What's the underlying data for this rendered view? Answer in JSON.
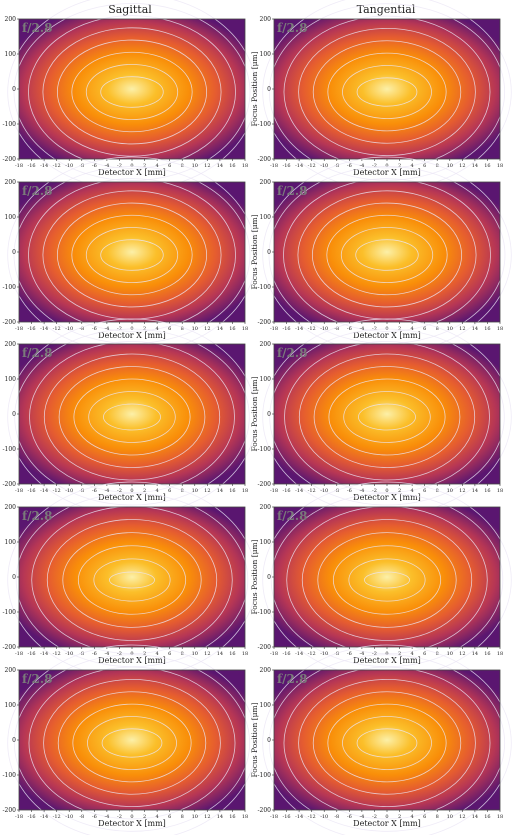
{
  "column_titles": [
    "Sagittal",
    "Tangential"
  ],
  "panel_label": "f/2.8",
  "chart_data": {
    "type": "heatmap",
    "xlabel": "Detector X [mm]",
    "ylabel": "Focus Position [μm]",
    "xlim": [
      -18,
      18
    ],
    "ylim": [
      -200,
      200
    ],
    "x_ticks": [
      -18,
      -16,
      -14,
      -12,
      -10,
      -8,
      -6,
      -4,
      -2,
      0,
      2,
      4,
      6,
      8,
      10,
      12,
      14,
      16,
      18
    ],
    "y_ticks": [
      -200,
      -100,
      0,
      100,
      200
    ],
    "contour_levels": [
      0.1,
      0.2,
      0.3,
      0.4,
      0.5,
      0.6,
      0.7,
      0.8
    ],
    "colormap": [
      "#0d0829",
      "#420a68",
      "#7a1d6d",
      "#b63655",
      "#e55c30",
      "#f98e09",
      "#fbbf2a",
      "#fcffa4"
    ],
    "rows": [
      {
        "sagittal": {
          "peak": 0.86,
          "width": 10
        },
        "tangential": {
          "peak": 0.85,
          "width": 8
        }
      },
      {
        "sagittal": {
          "peak": 0.86,
          "width": 10
        },
        "tangential": {
          "peak": 0.86,
          "width": 8
        }
      },
      {
        "sagittal": {
          "peak": 0.84,
          "width": 9
        },
        "tangential": {
          "peak": 0.84,
          "width": 5
        }
      },
      {
        "sagittal": {
          "peak": 0.8,
          "width": 12
        },
        "tangential": {
          "peak": 0.8,
          "width": 6
        }
      },
      {
        "sagittal": {
          "peak": 0.85,
          "width": 13
        },
        "tangential": {
          "peak": 0.85,
          "width": 9
        }
      }
    ]
  }
}
